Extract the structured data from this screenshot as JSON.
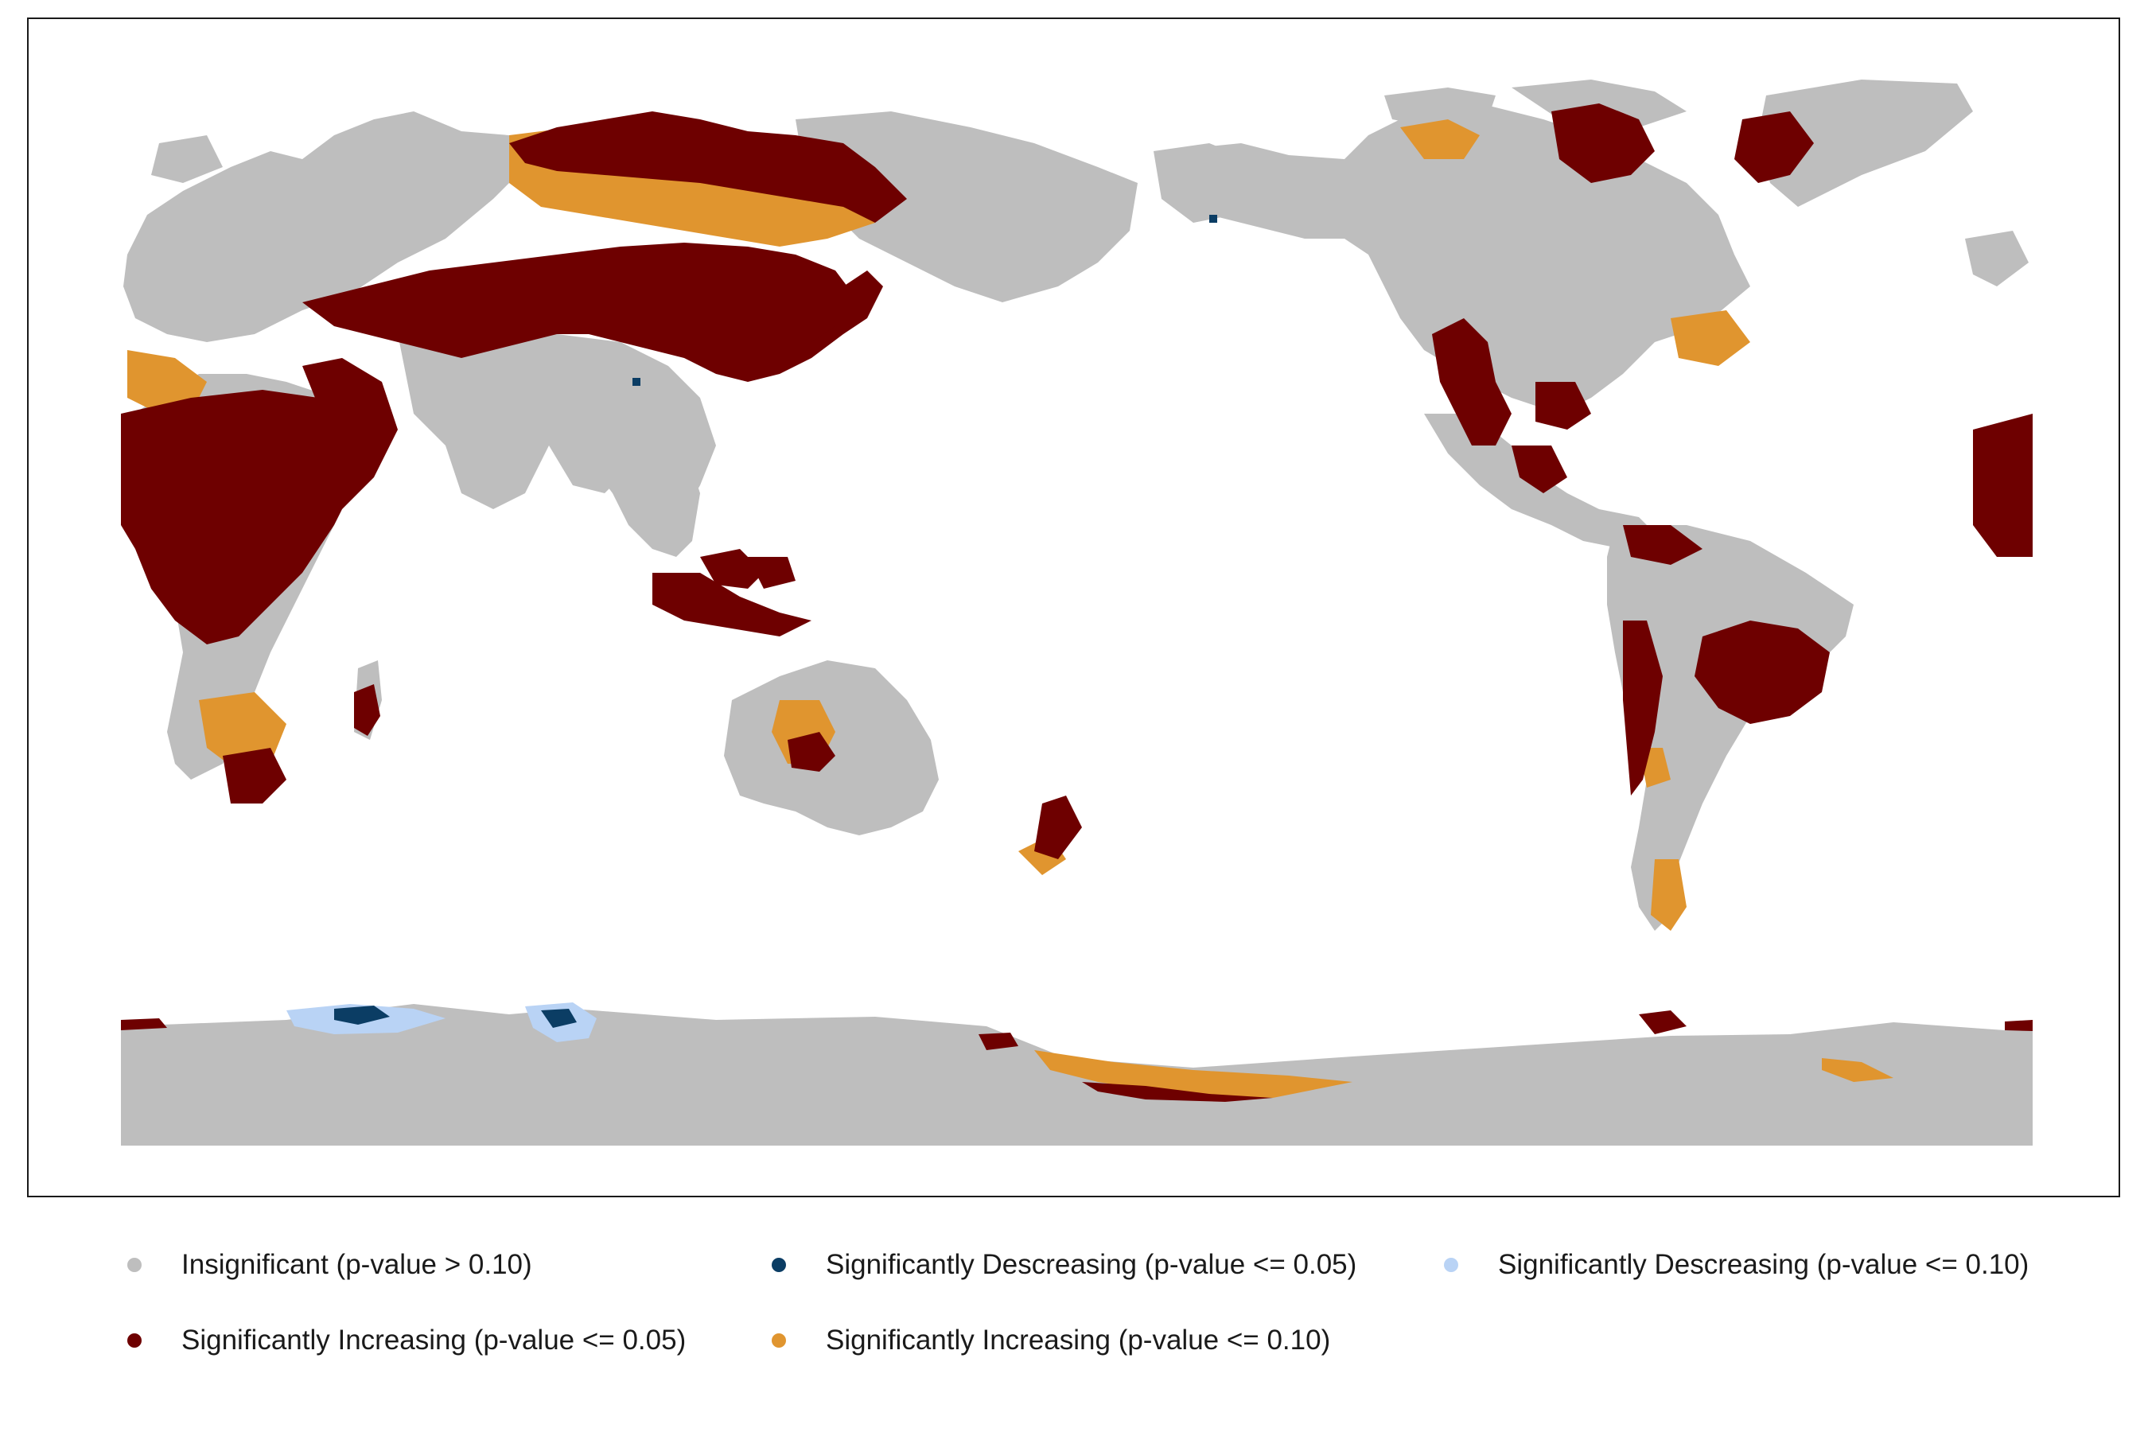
{
  "colors": {
    "insignificant": "#bebebe",
    "dec05": "#0b3d64",
    "dec10": "#b9d3f5",
    "inc05": "#6e0000",
    "inc10": "#e0952f"
  },
  "legend": {
    "items": [
      {
        "key": "insignificant",
        "label": "Insignificant (p-value > 0.10)"
      },
      {
        "key": "dec05",
        "label": "Significantly Descreasing (p-value <= 0.05)"
      },
      {
        "key": "dec10",
        "label": "Significantly Descreasing (p-value <= 0.10)"
      },
      {
        "key": "inc05",
        "label": "Significantly Increasing (p-value <= 0.05)"
      },
      {
        "key": "inc10",
        "label": "Significantly Increasing (p-value <= 0.10)"
      }
    ]
  }
}
